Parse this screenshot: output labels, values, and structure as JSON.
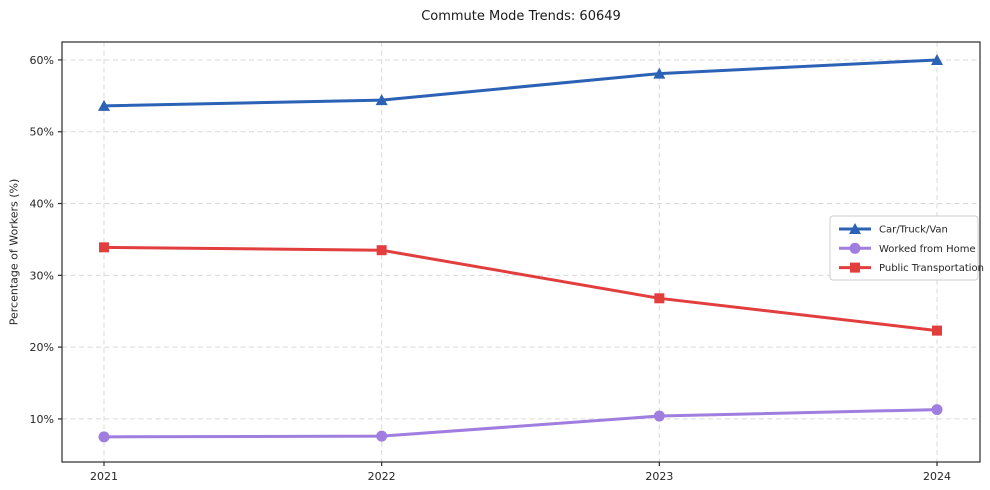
{
  "title": "Commute Mode Trends: 60649",
  "chart_data": {
    "type": "line",
    "title": "Commute Mode Trends: 60649",
    "xlabel": "",
    "ylabel": "Percentage of Workers (%)",
    "x": [
      "2021",
      "2022",
      "2023",
      "2024"
    ],
    "series": [
      {
        "name": "Car/Truck/Van",
        "values": [
          53.6,
          54.4,
          58.1,
          60.0
        ],
        "color": "#2b62b5",
        "marker": "triangle"
      },
      {
        "name": "Worked from Home",
        "values": [
          7.5,
          7.6,
          10.4,
          11.3
        ],
        "color": "#a07ee0",
        "marker": "circle"
      },
      {
        "name": "Public Transportation",
        "values": [
          33.9,
          33.5,
          26.8,
          22.3
        ],
        "color": "#e23e3e",
        "marker": "square"
      }
    ],
    "ylim": [
      4,
      62.5
    ],
    "yticks": [
      10,
      20,
      30,
      40,
      50,
      60
    ],
    "ytick_suffix": "%",
    "grid": true,
    "grid_style": "dashed",
    "legend_position": "center-right",
    "axis_color": "#2b2b2b",
    "grid_color": "#d9d9d9",
    "background_color": "#ffffff"
  }
}
